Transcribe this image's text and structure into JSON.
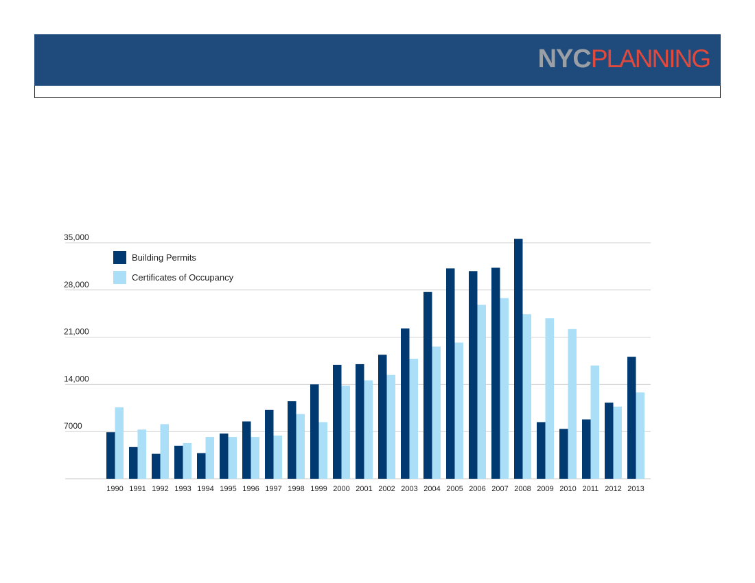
{
  "brand": {
    "logo_part1": "NYC",
    "logo_part2": "PLANNING",
    "banner_color": "#1f4a7c",
    "logo_part1_color": "#9aa0a6",
    "logo_part2_color": "#e0493c"
  },
  "chart_data": {
    "type": "bar",
    "title": "",
    "xlabel": "",
    "ylabel": "",
    "ylim": [
      0,
      35000
    ],
    "y_ticks": [
      7000,
      14000,
      21000,
      28000,
      35000
    ],
    "y_tick_labels": [
      "7000",
      "14,000",
      "21,000",
      "28,000",
      "35,000"
    ],
    "grid": true,
    "legend_position": "top-left",
    "categories": [
      "1990",
      "1991",
      "1992",
      "1993",
      "1994",
      "1995",
      "1996",
      "1997",
      "1998",
      "1999",
      "2000",
      "2001",
      "2002",
      "2003",
      "2004",
      "2005",
      "2006",
      "2007",
      "2008",
      "2009",
      "2010",
      "2011",
      "2012",
      "2013"
    ],
    "series": [
      {
        "name": "Building Permits",
        "color": "#003a70",
        "values": [
          6900,
          4700,
          3700,
          4900,
          3800,
          6700,
          8500,
          10200,
          11500,
          14000,
          16900,
          17000,
          18400,
          22300,
          27700,
          31200,
          30800,
          31300,
          35600,
          8400,
          7400,
          8800,
          11300,
          18100
        ]
      },
      {
        "name": "Certificates of Occupancy",
        "color": "#abdff7",
        "values": [
          10600,
          7300,
          8100,
          5300,
          6200,
          6200,
          6200,
          6400,
          9600,
          8400,
          13800,
          14600,
          15400,
          17800,
          19600,
          20200,
          25800,
          26800,
          24400,
          23800,
          22200,
          16800,
          10700,
          12800
        ]
      }
    ]
  }
}
